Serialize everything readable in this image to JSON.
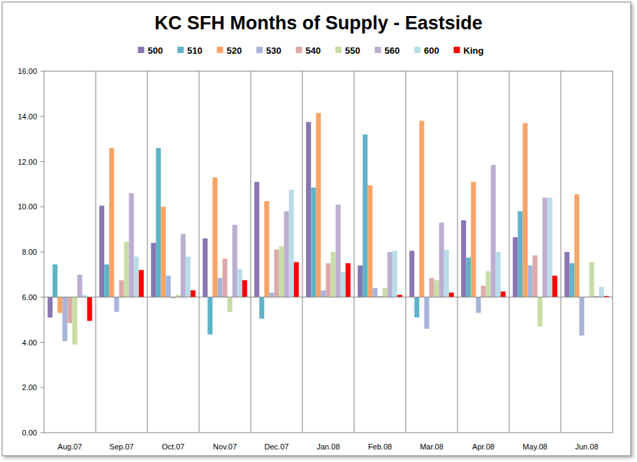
{
  "chart_data": {
    "type": "bar",
    "title": "KC SFH Months of Supply - Eastside",
    "categories": [
      "Aug.07",
      "Sep.07",
      "Oct.07",
      "Nov.07",
      "Dec.07",
      "Jan.08",
      "Feb.08",
      "Mar.08",
      "Apr.08",
      "May.08",
      "Jun.08"
    ],
    "series": [
      {
        "name": "500",
        "color": "#8a74b2",
        "values": [
          5.1,
          10.05,
          8.4,
          8.6,
          11.1,
          13.75,
          7.4,
          8.05,
          9.4,
          8.65,
          8.0
        ]
      },
      {
        "name": "510",
        "color": "#5fb3c9",
        "values": [
          7.45,
          7.45,
          12.6,
          4.35,
          5.05,
          10.85,
          13.2,
          5.1,
          7.75,
          9.8,
          7.5
        ]
      },
      {
        "name": "520",
        "color": "#f8a468",
        "values": [
          5.3,
          12.6,
          10.0,
          11.3,
          10.25,
          14.15,
          10.95,
          13.8,
          11.1,
          13.7,
          10.55
        ]
      },
      {
        "name": "530",
        "color": "#a7b5d9",
        "values": [
          4.05,
          5.35,
          6.95,
          6.85,
          6.2,
          6.3,
          6.4,
          4.6,
          5.3,
          7.4,
          4.3
        ]
      },
      {
        "name": "540",
        "color": "#dcaaaa",
        "values": [
          4.85,
          6.75,
          5.95,
          7.7,
          8.1,
          7.5,
          6.05,
          6.85,
          6.5,
          7.85,
          6.0
        ]
      },
      {
        "name": "550",
        "color": "#c9dca6",
        "values": [
          3.9,
          8.45,
          6.1,
          5.35,
          8.25,
          8.0,
          6.4,
          6.75,
          7.15,
          4.7,
          7.55
        ]
      },
      {
        "name": "560",
        "color": "#bcaed0",
        "values": [
          7.0,
          10.6,
          8.8,
          9.2,
          9.8,
          10.1,
          8.0,
          9.3,
          11.85,
          10.4,
          6.05
        ]
      },
      {
        "name": "600",
        "color": "#b9dde8",
        "values": [
          6.1,
          7.8,
          7.8,
          7.25,
          10.75,
          7.1,
          8.05,
          8.1,
          8.0,
          10.4,
          6.45
        ]
      },
      {
        "name": "King",
        "color": "#ff0000",
        "values": [
          4.95,
          7.2,
          6.3,
          6.75,
          7.55,
          7.5,
          6.1,
          6.2,
          6.25,
          6.95,
          6.05
        ]
      }
    ],
    "ylim": [
      0,
      16
    ],
    "yticks": [
      {
        "value": 0,
        "label": "0.00"
      },
      {
        "value": 2,
        "label": "2.00"
      },
      {
        "value": 4,
        "label": "4.00"
      },
      {
        "value": 6,
        "label": "6.00"
      },
      {
        "value": 8,
        "label": "8.00"
      },
      {
        "value": 10,
        "label": "10.00"
      },
      {
        "value": 12,
        "label": "12.00"
      },
      {
        "value": 14,
        "label": "14.00"
      },
      {
        "value": 16,
        "label": "16.00"
      }
    ],
    "grid": true,
    "legend": "top"
  }
}
